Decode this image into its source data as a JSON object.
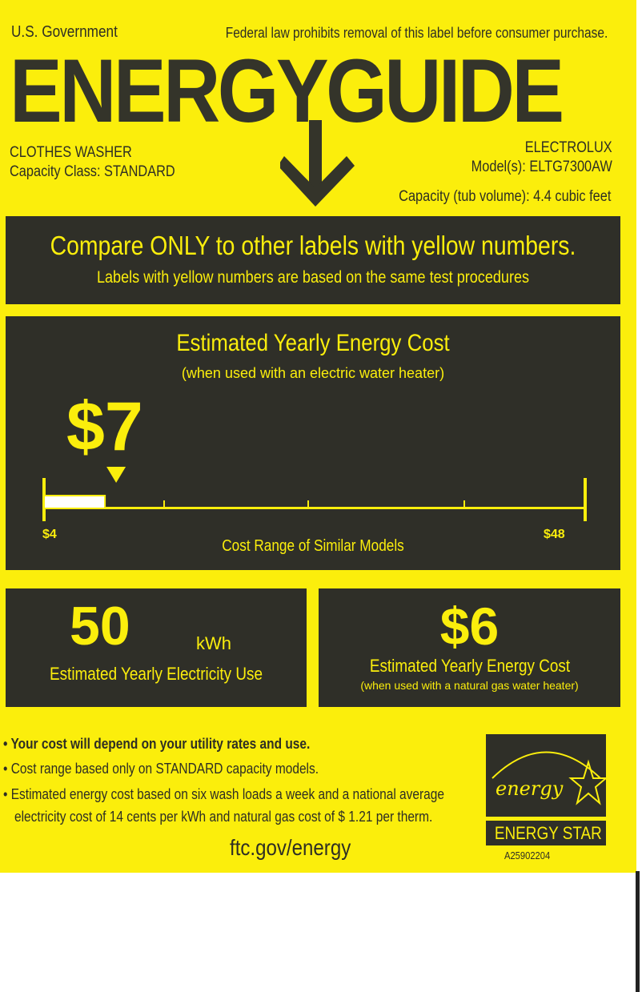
{
  "header": {
    "government": "U.S. Government",
    "law_notice": "Federal law prohibits removal of this label before consumer purchase.",
    "title": "ENERGYGUIDE"
  },
  "product": {
    "type": "CLOTHES WASHER",
    "capacity_class": "Capacity Class:  STANDARD",
    "brand": "ELECTROLUX",
    "model": "Model(s):   ELTG7300AW",
    "capacity": "Capacity (tub volume):  4.4  cubic feet"
  },
  "compare": {
    "title": "Compare ONLY to other labels with yellow numbers.",
    "subtitle": "Labels with yellow numbers are based on the same test procedures"
  },
  "electric_cost": {
    "title": "Estimated Yearly  Energy Cost",
    "subtitle": "(when used with an electric water heater)",
    "value": "$7",
    "range_min": "$4",
    "range_max": "$48",
    "range_label": "Cost Range of Similar Models",
    "scale": {
      "min": 4,
      "max": 48,
      "value": 7
    }
  },
  "electricity_use": {
    "value": "50",
    "unit": "kWh",
    "label": "Estimated Yearly Electricity Use"
  },
  "gas_cost": {
    "value": "$6",
    "title": "Estimated Yearly Energy Cost",
    "subtitle": "(when used with a natural gas water heater)"
  },
  "notes": [
    "Your cost will depend on your utility rates and use.",
    "Cost range based only on  STANDARD   capacity models.",
    "Estimated energy cost based on six wash loads a week and a national average",
    "electricity cost of 14 cents per kWh and natural gas cost of $ 1.21 per therm."
  ],
  "website": "ftc.gov/energy",
  "energy_star": {
    "logo_text": "energy",
    "label": "ENERGY STAR",
    "code": "A25902204"
  },
  "colors": {
    "label_yellow": "#fbee0c",
    "panel_dark": "#2f2f28"
  }
}
